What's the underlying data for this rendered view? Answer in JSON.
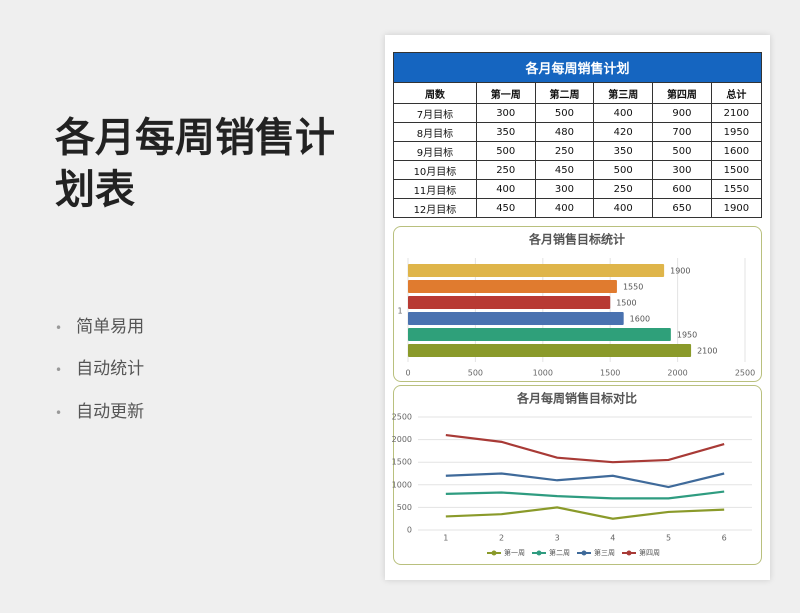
{
  "title": "各月每周销售计划表",
  "bullets": [
    "简单易用",
    "自动统计",
    "自动更新"
  ],
  "table": {
    "title": "各月每周销售计划",
    "header": [
      "周数",
      "第一周",
      "第二周",
      "第三周",
      "第四周",
      "总计"
    ],
    "rows": [
      [
        "7月目标",
        300,
        500,
        400,
        900,
        2100
      ],
      [
        "8月目标",
        350,
        480,
        420,
        700,
        1950
      ],
      [
        "9月目标",
        500,
        250,
        350,
        500,
        1600
      ],
      [
        "10月目标",
        250,
        450,
        500,
        300,
        1500
      ],
      [
        "11月目标",
        400,
        300,
        250,
        600,
        1550
      ],
      [
        "12月目标",
        450,
        400,
        400,
        650,
        1900
      ]
    ]
  },
  "chart_data": [
    {
      "type": "bar",
      "orientation": "horizontal",
      "title": "各月销售目标统计",
      "categories": [
        "1"
      ],
      "series": [
        {
          "color": "#dfb54a",
          "values": [
            1900
          ]
        },
        {
          "color": "#e07b2f",
          "values": [
            1550
          ]
        },
        {
          "color": "#b83a34",
          "values": [
            1500
          ]
        },
        {
          "color": "#4a72b0",
          "values": [
            1600
          ]
        },
        {
          "color": "#2fa07a",
          "values": [
            1950
          ]
        },
        {
          "color": "#8a9a2a",
          "values": [
            2100
          ]
        }
      ],
      "xlim": [
        0,
        2500
      ],
      "xticks": [
        0,
        500,
        1000,
        1500,
        2000,
        2500
      ],
      "grid": true
    },
    {
      "type": "line",
      "stacked": true,
      "title": "各月每周销售目标对比",
      "categories": [
        "1",
        "2",
        "3",
        "4",
        "5",
        "6"
      ],
      "series": [
        {
          "name": "第一周",
          "color": "#8a9a2a",
          "values": [
            300,
            350,
            500,
            250,
            400,
            450
          ]
        },
        {
          "name": "第二周",
          "color": "#2f9c80",
          "values": [
            500,
            480,
            250,
            450,
            300,
            400
          ]
        },
        {
          "name": "第三周",
          "color": "#3f6a9a",
          "values": [
            400,
            420,
            350,
            500,
            250,
            400
          ]
        },
        {
          "name": "第四周",
          "color": "#a83a36",
          "values": [
            900,
            700,
            500,
            300,
            600,
            650
          ]
        }
      ],
      "ylim": [
        0,
        2500
      ],
      "yticks": [
        0,
        500,
        1000,
        1500,
        2000,
        2500
      ],
      "grid": true,
      "legend": "bottom"
    }
  ]
}
